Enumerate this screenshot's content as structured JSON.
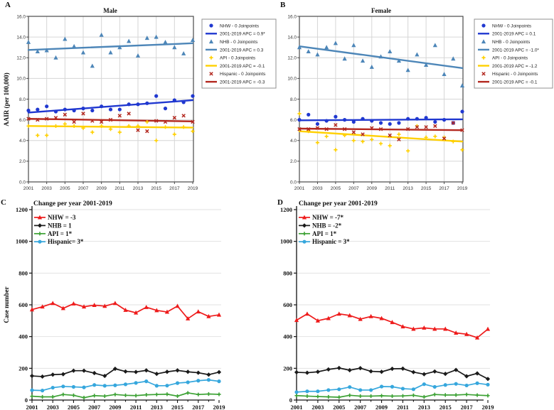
{
  "figure": {
    "background": "#ffffff"
  },
  "chart_data": {
    "panels": [
      {
        "id": "A",
        "label": "A",
        "type": "scatter",
        "title": "Male",
        "ylabel": "AAIR (per 100,000)",
        "ylim": [
          0,
          16
        ],
        "ytick_step": 2,
        "ytick_decimals": 1,
        "x": [
          2001,
          2002,
          2003,
          2004,
          2005,
          2006,
          2007,
          2008,
          2009,
          2010,
          2011,
          2012,
          2013,
          2014,
          2015,
          2016,
          2017,
          2018,
          2019
        ],
        "xticks": [
          2001,
          2003,
          2005,
          2007,
          2009,
          2011,
          2013,
          2015,
          2017,
          2019
        ],
        "grid": true,
        "legend_position": "right-outside",
        "series": [
          {
            "name": "NHW",
            "marker": "circle",
            "color": "#2038d0",
            "legend_marker_label": "NHW - 0 Joinpoints",
            "legend_line_label": "2001-2019 APC  = 0.9*",
            "values": [
              6.9,
              7.0,
              7.3,
              6.8,
              7.0,
              6.9,
              7.1,
              6.9,
              7.3,
              7.0,
              7.0,
              7.5,
              7.5,
              7.6,
              8.3,
              7.1,
              7.9,
              7.7,
              8.3
            ],
            "trend": [
              6.7,
              7.9
            ]
          },
          {
            "name": "NHB",
            "marker": "triangle",
            "color": "#4d86b8",
            "legend_marker_label": "NHB - 0 Joinpoints",
            "legend_line_label": "2001-2019 APC  = 0.3",
            "values": [
              13.5,
              12.6,
              12.7,
              12.0,
              13.8,
              13.1,
              12.5,
              11.2,
              14.2,
              12.5,
              13.0,
              13.6,
              12.2,
              13.9,
              14.0,
              13.5,
              13.0,
              12.4,
              13.7
            ],
            "trend": [
              12.75,
              13.4
            ]
          },
          {
            "name": "API",
            "marker": "plus",
            "color": "#ffd000",
            "legend_marker_label": "API - 0 Joinpoints",
            "legend_line_label": "2001-2019 APC  = -0.1",
            "values": [
              5.4,
              4.5,
              4.5,
              5.4,
              5.6,
              5.4,
              5.2,
              4.8,
              5.4,
              5.1,
              4.8,
              5.4,
              5.4,
              5.8,
              4.0,
              5.3,
              4.6,
              5.3,
              4.9
            ],
            "trend": [
              5.4,
              5.25
            ]
          },
          {
            "name": "Hispanic",
            "marker": "x",
            "color": "#b3281f",
            "legend_marker_label": "Hispanic - 0 Joinpoints",
            "legend_line_label": "2001-2019 APC  = -0.3",
            "values": [
              6.1,
              6.0,
              6.1,
              6.2,
              6.5,
              5.8,
              6.6,
              5.9,
              5.8,
              6.0,
              6.4,
              6.6,
              5.0,
              4.9,
              5.9,
              5.8,
              6.2,
              6.4,
              5.8
            ],
            "trend": [
              6.1,
              5.85
            ]
          }
        ]
      },
      {
        "id": "B",
        "label": "B",
        "type": "scatter",
        "title": "Female",
        "ylabel": "",
        "ylim": [
          0,
          16
        ],
        "ytick_step": 2,
        "ytick_decimals": 1,
        "x": [
          2001,
          2002,
          2003,
          2004,
          2005,
          2006,
          2007,
          2008,
          2009,
          2010,
          2011,
          2012,
          2013,
          2014,
          2015,
          2016,
          2017,
          2018,
          2019
        ],
        "xticks": [
          2001,
          2003,
          2005,
          2007,
          2009,
          2011,
          2013,
          2015,
          2017,
          2019
        ],
        "grid": true,
        "legend_position": "right-outside",
        "series": [
          {
            "name": "NHW",
            "marker": "circle",
            "color": "#2038d0",
            "legend_marker_label": "NHW - 0 Joinpoints",
            "legend_line_label": "2001-2019 APC  = 0.1",
            "values": [
              6.0,
              6.5,
              5.6,
              5.9,
              6.3,
              6.0,
              5.8,
              6.1,
              5.9,
              5.7,
              5.6,
              5.7,
              6.1,
              6.1,
              6.2,
              5.8,
              6.0,
              5.7,
              6.8
            ],
            "trend": [
              5.95,
              6.05
            ]
          },
          {
            "name": "NHB",
            "marker": "triangle",
            "color": "#4d86b8",
            "legend_marker_label": "NHB - 0 Joinpoints",
            "legend_line_label": "2001-2019 APC  = -1.0*",
            "values": [
              13.0,
              12.6,
              12.3,
              13.0,
              13.4,
              11.9,
              13.2,
              11.7,
              11.1,
              12.1,
              12.6,
              11.7,
              10.8,
              12.3,
              11.3,
              13.2,
              10.4,
              11.9,
              9.3
            ],
            "trend": [
              13.1,
              11.0
            ]
          },
          {
            "name": "API",
            "marker": "plus",
            "color": "#ffd000",
            "legend_marker_label": "API - 0 Joinpoints",
            "legend_line_label": "2001-2019 APC  = -1.2",
            "values": [
              6.6,
              4.9,
              3.8,
              4.4,
              3.1,
              4.5,
              4.0,
              3.9,
              4.1,
              3.7,
              3.5,
              4.6,
              3.0,
              5.4,
              4.3,
              4.4,
              4.3,
              3.9,
              3.1
            ],
            "trend": [
              4.9,
              3.9
            ]
          },
          {
            "name": "Hispanic",
            "marker": "x",
            "color": "#b3281f",
            "legend_marker_label": "Hispanic - 0 Joinpoints",
            "legend_line_label": "2001-2019 APC  = -0.1",
            "values": [
              5.1,
              5.1,
              5.2,
              5.1,
              5.5,
              5.1,
              4.8,
              4.6,
              5.2,
              5.1,
              4.5,
              4.1,
              5.1,
              5.3,
              5.3,
              5.4,
              4.2,
              5.7,
              5.0
            ],
            "trend": [
              5.15,
              5.0
            ]
          }
        ]
      },
      {
        "id": "C",
        "label": "C",
        "type": "line",
        "title": "Change per year 2001-2019",
        "ylabel": "Case number",
        "ylim": [
          0,
          1200
        ],
        "ytick_step": 200,
        "ytick_decimals": 0,
        "x": [
          2001,
          2002,
          2003,
          2004,
          2005,
          2006,
          2007,
          2008,
          2009,
          2010,
          2011,
          2012,
          2013,
          2014,
          2015,
          2016,
          2017,
          2018,
          2019
        ],
        "xticks": [
          2001,
          2003,
          2005,
          2007,
          2009,
          2011,
          2013,
          2015,
          2017,
          2019
        ],
        "grid": true,
        "legend_position": "top-left-inside",
        "series": [
          {
            "name": "NHW",
            "marker": "triangle",
            "color": "#ee1b1b",
            "legend_label": "NHW  = -3",
            "values": [
              570,
              588,
              610,
              578,
              607,
              588,
              598,
              592,
              610,
              567,
              550,
              585,
              565,
              555,
              592,
              513,
              557,
              527,
              537
            ]
          },
          {
            "name": "NHB",
            "marker": "diamond",
            "color": "#1a1a1a",
            "legend_label": "NHB = 1",
            "values": [
              152,
              148,
              160,
              163,
              185,
              185,
              170,
              152,
              197,
              180,
              177,
              187,
              165,
              178,
              187,
              178,
              172,
              160,
              176
            ]
          },
          {
            "name": "API",
            "marker": "plus",
            "color": "#3ba133",
            "legend_label": "API  = 1*",
            "values": [
              24,
              20,
              20,
              35,
              30,
              15,
              28,
              25,
              35,
              30,
              28,
              33,
              35,
              37,
              25,
              45,
              35,
              38,
              36
            ]
          },
          {
            "name": "Hispanic",
            "marker": "circle",
            "color": "#36a7dd",
            "legend_label": "Hispanic= 3*",
            "values": [
              62,
              60,
              78,
              86,
              83,
              80,
              95,
              90,
              93,
              99,
              108,
              118,
              90,
              91,
              107,
              112,
              122,
              127,
              118
            ]
          }
        ]
      },
      {
        "id": "D",
        "label": "D",
        "type": "line",
        "title": "Change per year 2001-2019",
        "ylabel": "",
        "ylim": [
          0,
          1200
        ],
        "ytick_step": 200,
        "ytick_decimals": 0,
        "x": [
          2001,
          2002,
          2003,
          2004,
          2005,
          2006,
          2007,
          2008,
          2009,
          2010,
          2011,
          2012,
          2013,
          2014,
          2015,
          2016,
          2017,
          2018,
          2019
        ],
        "xticks": [
          2001,
          2003,
          2005,
          2007,
          2009,
          2011,
          2013,
          2015,
          2017,
          2019
        ],
        "grid": true,
        "legend_position": "top-left-inside",
        "series": [
          {
            "name": "NHW",
            "marker": "triangle",
            "color": "#ee1b1b",
            "legend_label": "NHW  = -7*",
            "values": [
              503,
              543,
              500,
              515,
              543,
              533,
              510,
              527,
              515,
              490,
              463,
              448,
              455,
              448,
              448,
              423,
              415,
              393,
              447
            ]
          },
          {
            "name": "NHB",
            "marker": "diamond",
            "color": "#1a1a1a",
            "legend_label": "NHB = -2*",
            "values": [
              175,
              172,
              178,
              193,
              202,
              188,
              201,
              181,
              178,
              197,
              198,
              176,
              163,
              180,
              165,
              190,
              150,
              168,
              133
            ]
          },
          {
            "name": "API",
            "marker": "plus",
            "color": "#3ba133",
            "legend_label": "API  = 1*",
            "values": [
              28,
              25,
              22,
              20,
              18,
              30,
              25,
              25,
              27,
              25,
              26,
              30,
              20,
              35,
              32,
              32,
              35,
              31,
              28
            ]
          },
          {
            "name": "Hispanic",
            "marker": "circle",
            "color": "#36a7dd",
            "legend_label": "Hispanic = 3*",
            "values": [
              50,
              55,
              55,
              63,
              68,
              82,
              63,
              63,
              85,
              84,
              72,
              68,
              100,
              83,
              95,
              102,
              92,
              106,
              97
            ]
          }
        ]
      }
    ],
    "colors": {
      "nhw_top": "#2038d0",
      "nhb_top": "#4d86b8",
      "api_top": "#ffd000",
      "hispanic_top": "#b3281f",
      "nhw_bottom": "#ee1b1b",
      "nhb_bottom": "#1a1a1a",
      "api_bottom": "#3ba133",
      "hispanic_bottom": "#36a7dd",
      "grid_top": "#d6d6d6",
      "grid_bottom": "#e2e2e2",
      "axis": "#4a4a4a"
    }
  }
}
